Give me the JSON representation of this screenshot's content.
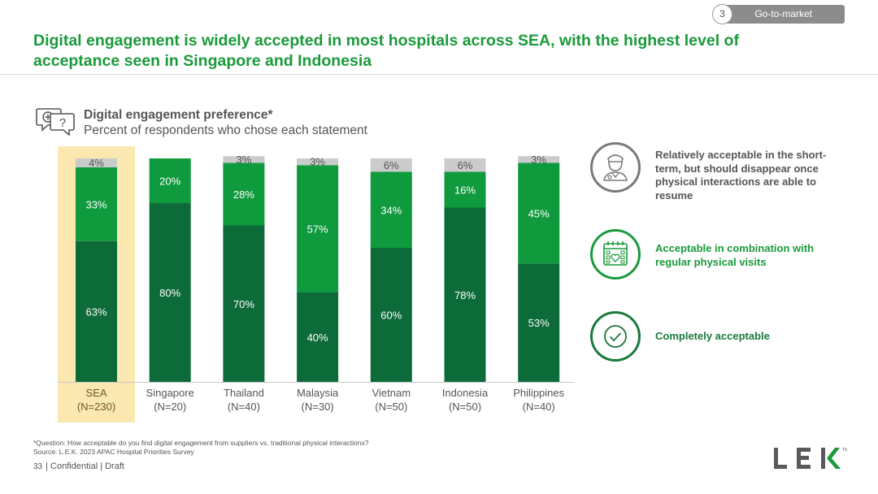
{
  "header": {
    "section_number": "3",
    "section_label": "Go-to-market",
    "title": "Digital engagement is widely accepted in most hospitals across SEA, with the highest level of acceptance seen in Singapore and Indonesia"
  },
  "chart_header": {
    "icon": "chat-question-icon",
    "title": "Digital engagement preference*",
    "subtitle": "Percent of respondents who chose each statement"
  },
  "chart_data": {
    "type": "bar",
    "stacked": true,
    "title": "Digital engagement preference*",
    "subtitle": "Percent of respondents who chose each statement",
    "ylim": [
      0,
      100
    ],
    "categories": [
      {
        "name": "SEA",
        "n": "(N=230)",
        "highlight": true
      },
      {
        "name": "Singapore",
        "n": "(N=20)",
        "highlight": false
      },
      {
        "name": "Thailand",
        "n": "(N=40)",
        "highlight": false
      },
      {
        "name": "Malaysia",
        "n": "(N=30)",
        "highlight": false
      },
      {
        "name": "Vietnam",
        "n": "(N=50)",
        "highlight": false
      },
      {
        "name": "Indonesia",
        "n": "(N=50)",
        "highlight": false
      },
      {
        "name": "Philippines",
        "n": "(N=40)",
        "highlight": false
      }
    ],
    "series": [
      {
        "name": "Completely acceptable",
        "color": "#0d6b3a",
        "values": [
          63,
          80,
          70,
          40,
          60,
          78,
          53
        ]
      },
      {
        "name": "Acceptable in combination with regular physical visits",
        "color": "#0f9a3e",
        "values": [
          33,
          20,
          28,
          57,
          34,
          16,
          45
        ]
      },
      {
        "name": "Relatively acceptable in the short-term, but should disappear once physical interactions are able to resume",
        "color": "#c9cccb",
        "values": [
          4,
          0,
          3,
          3,
          6,
          6,
          3
        ]
      }
    ],
    "highlight_color": "#fbe7b0",
    "label_suffix": "%"
  },
  "legend": [
    {
      "icon": "doctor-icon",
      "label": "Relatively acceptable in the short-term, but should disappear once physical interactions are able to resume",
      "color": "#555555",
      "ring": "#7a7a7a"
    },
    {
      "icon": "calendar-heart-icon",
      "label": "Acceptable in combination with regular physical visits",
      "color": "#1a9a3a",
      "ring": "#1a9a3a"
    },
    {
      "icon": "checkmark-circle-icon",
      "label": "Completely acceptable",
      "color": "#1a7a3a",
      "ring": "#1a7a3a"
    }
  ],
  "footnote": {
    "question": "*Question: How acceptable do you find digital engagement from suppliers vs. traditional physical interactions?",
    "source": "Source:  L.E.K. 2023 APAC Hospital Priorities Survey"
  },
  "footer": {
    "page_number": "33",
    "text": "| Confidential | Draft"
  },
  "logo": {
    "text": "LEK",
    "tm": "TM"
  }
}
